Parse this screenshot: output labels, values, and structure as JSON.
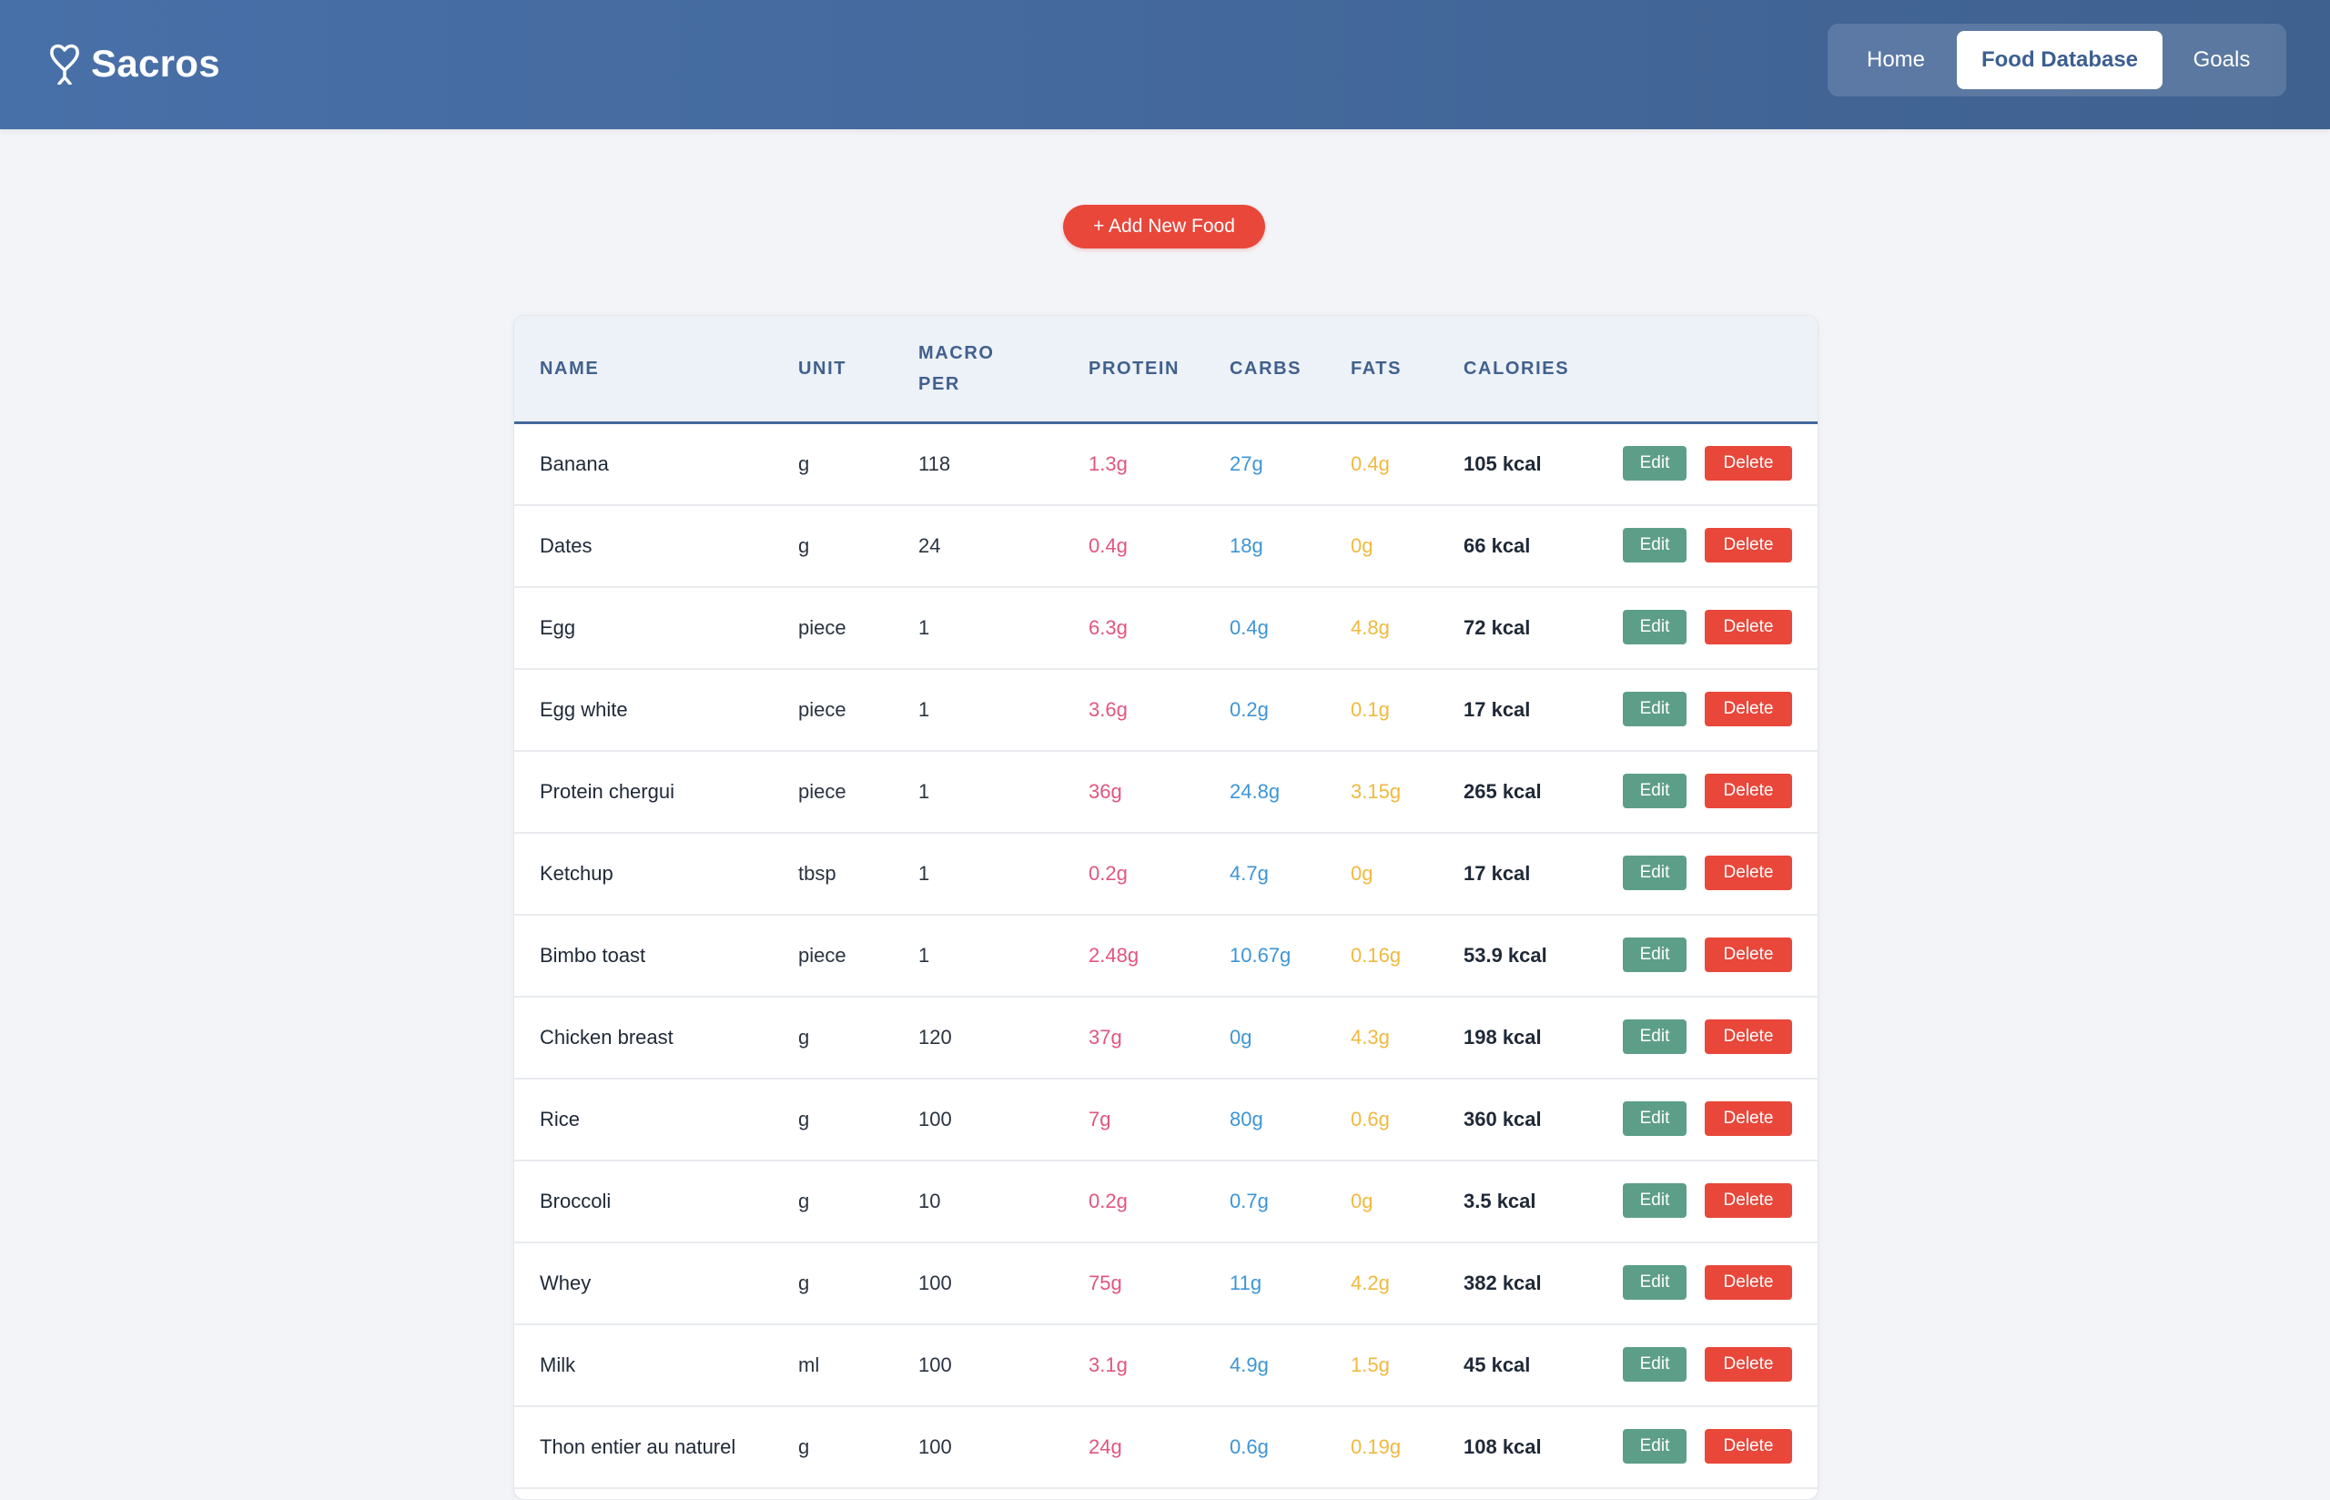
{
  "header": {
    "brand": "Sacros",
    "logo_icon": "heart-pin-icon",
    "nav": [
      {
        "label": "Home",
        "active": false
      },
      {
        "label": "Food Database",
        "active": true
      },
      {
        "label": "Goals",
        "active": false
      }
    ]
  },
  "main": {
    "add_button_label": "+ Add New Food"
  },
  "table": {
    "columns": [
      "NAME",
      "UNIT",
      "MACRO PER",
      "PROTEIN",
      "CARBS",
      "FATS",
      "CALORIES"
    ],
    "edit_label": "Edit",
    "delete_label": "Delete",
    "rows": [
      {
        "name": "Banana",
        "unit": "g",
        "per": "118",
        "protein": "1.3g",
        "carbs": "27g",
        "fats": "0.4g",
        "calories": "105 kcal"
      },
      {
        "name": "Dates",
        "unit": "g",
        "per": "24",
        "protein": "0.4g",
        "carbs": "18g",
        "fats": "0g",
        "calories": "66 kcal"
      },
      {
        "name": "Egg",
        "unit": "piece",
        "per": "1",
        "protein": "6.3g",
        "carbs": "0.4g",
        "fats": "4.8g",
        "calories": "72 kcal"
      },
      {
        "name": "Egg white",
        "unit": "piece",
        "per": "1",
        "protein": "3.6g",
        "carbs": "0.2g",
        "fats": "0.1g",
        "calories": "17 kcal"
      },
      {
        "name": "Protein chergui",
        "unit": "piece",
        "per": "1",
        "protein": "36g",
        "carbs": "24.8g",
        "fats": "3.15g",
        "calories": "265 kcal"
      },
      {
        "name": "Ketchup",
        "unit": "tbsp",
        "per": "1",
        "protein": "0.2g",
        "carbs": "4.7g",
        "fats": "0g",
        "calories": "17 kcal"
      },
      {
        "name": "Bimbo toast",
        "unit": "piece",
        "per": "1",
        "protein": "2.48g",
        "carbs": "10.67g",
        "fats": "0.16g",
        "calories": "53.9 kcal"
      },
      {
        "name": "Chicken breast",
        "unit": "g",
        "per": "120",
        "protein": "37g",
        "carbs": "0g",
        "fats": "4.3g",
        "calories": "198 kcal"
      },
      {
        "name": "Rice",
        "unit": "g",
        "per": "100",
        "protein": "7g",
        "carbs": "80g",
        "fats": "0.6g",
        "calories": "360 kcal"
      },
      {
        "name": "Broccoli",
        "unit": "g",
        "per": "10",
        "protein": "0.2g",
        "carbs": "0.7g",
        "fats": "0g",
        "calories": "3.5 kcal"
      },
      {
        "name": "Whey",
        "unit": "g",
        "per": "100",
        "protein": "75g",
        "carbs": "11g",
        "fats": "4.2g",
        "calories": "382 kcal"
      },
      {
        "name": "Milk",
        "unit": "ml",
        "per": "100",
        "protein": "3.1g",
        "carbs": "4.9g",
        "fats": "1.5g",
        "calories": "45 kcal"
      },
      {
        "name": "Thon entier au naturel",
        "unit": "g",
        "per": "100",
        "protein": "24g",
        "carbs": "0.6g",
        "fats": "0.19g",
        "calories": "108 kcal"
      }
    ]
  },
  "colors": {
    "header": "#4870a8",
    "accent_red": "#e8473a",
    "edit_green": "#5d9e88",
    "protein": "#e2557e",
    "carbs": "#3d95d6",
    "fats": "#f0b93f"
  }
}
